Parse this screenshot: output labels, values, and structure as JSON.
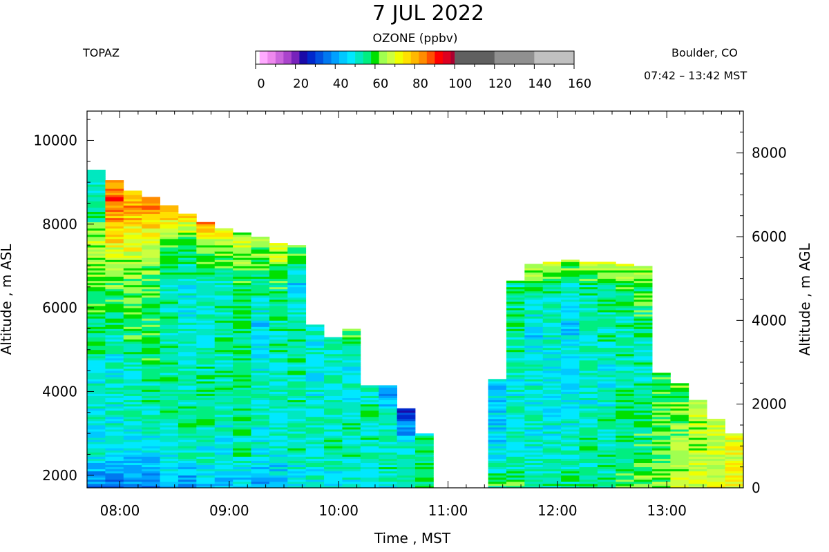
{
  "header": {
    "date": "7 JUL 2022",
    "site": "TOPAZ",
    "location": "Boulder, CO",
    "time_range": "07:42 – 13:42 MST"
  },
  "colorbar": {
    "title": "OZONE (ppbv)",
    "ticks": [
      "0",
      "20",
      "40",
      "60",
      "80",
      "100",
      "120",
      "140",
      "160"
    ],
    "bins": [
      {
        "from": 0,
        "to": 2,
        "color": "#ffffff"
      },
      {
        "from": 2,
        "to": 6,
        "color": "#ffaaff"
      },
      {
        "from": 6,
        "to": 10,
        "color": "#ee88ee"
      },
      {
        "from": 10,
        "to": 14,
        "color": "#cc66dd"
      },
      {
        "from": 14,
        "to": 18,
        "color": "#aa44cc"
      },
      {
        "from": 18,
        "to": 22,
        "color": "#7722bb"
      },
      {
        "from": 22,
        "to": 26,
        "color": "#1a0aa8"
      },
      {
        "from": 26,
        "to": 30,
        "color": "#0028cc"
      },
      {
        "from": 30,
        "to": 34,
        "color": "#0050e0"
      },
      {
        "from": 34,
        "to": 38,
        "color": "#0078f0"
      },
      {
        "from": 38,
        "to": 42,
        "color": "#00a0ff"
      },
      {
        "from": 42,
        "to": 46,
        "color": "#00c8ff"
      },
      {
        "from": 46,
        "to": 50,
        "color": "#00e8ff"
      },
      {
        "from": 50,
        "to": 54,
        "color": "#00e8c0"
      },
      {
        "from": 54,
        "to": 58,
        "color": "#00ee80"
      },
      {
        "from": 58,
        "to": 62,
        "color": "#00e000"
      },
      {
        "from": 62,
        "to": 66,
        "color": "#a0ff50"
      },
      {
        "from": 66,
        "to": 70,
        "color": "#ccff40"
      },
      {
        "from": 70,
        "to": 74,
        "color": "#f0ff00"
      },
      {
        "from": 74,
        "to": 78,
        "color": "#ffe000"
      },
      {
        "from": 78,
        "to": 82,
        "color": "#ffb800"
      },
      {
        "from": 82,
        "to": 86,
        "color": "#ff8c00"
      },
      {
        "from": 86,
        "to": 90,
        "color": "#ff5000"
      },
      {
        "from": 90,
        "to": 94,
        "color": "#ff0000"
      },
      {
        "from": 94,
        "to": 98,
        "color": "#dd0020"
      },
      {
        "from": 98,
        "to": 100,
        "color": "#aa0030"
      },
      {
        "from": 100,
        "to": 120,
        "color": "#606060"
      },
      {
        "from": 120,
        "to": 140,
        "color": "#909090"
      },
      {
        "from": 140,
        "to": 160,
        "color": "#c0c0c0"
      }
    ]
  },
  "chart_data": {
    "type": "heatmap",
    "title": "7 JUL 2022",
    "xlabel": "Time , MST",
    "ylabel": "Altitude , m ASL",
    "y2label": "Altitude , m AGL",
    "xticks": [
      "08:00",
      "09:00",
      "10:00",
      "11:00",
      "12:00",
      "13:00"
    ],
    "yticks": [
      2000,
      4000,
      6000,
      8000,
      10000
    ],
    "y2ticks": [
      0,
      2000,
      4000,
      6000,
      8000
    ],
    "xlim": [
      "07:42",
      "13:42"
    ],
    "ylim": [
      1700,
      10700
    ],
    "y2offset": 1700,
    "z_range": [
      0,
      160
    ],
    "altitude_levels": [
      1800,
      2500,
      3500,
      4500,
      5500,
      6500,
      7500,
      8500
    ],
    "profiles": [
      {
        "time": "07:47",
        "top": 9300,
        "ozone": [
          36,
          50,
          50,
          52,
          56,
          62,
          66,
          52
        ]
      },
      {
        "time": "07:57",
        "top": 9050,
        "ozone": [
          36,
          46,
          52,
          50,
          54,
          60,
          72,
          86
        ]
      },
      {
        "time": "08:07",
        "top": 8800,
        "ozone": [
          40,
          46,
          52,
          52,
          58,
          60,
          70,
          82
        ]
      },
      {
        "time": "08:17",
        "top": 8650,
        "ozone": [
          38,
          46,
          54,
          56,
          58,
          60,
          66,
          86
        ]
      },
      {
        "time": "08:27",
        "top": 8450,
        "ozone": [
          42,
          50,
          54,
          54,
          54,
          52,
          60,
          82
        ]
      },
      {
        "time": "08:37",
        "top": 8250,
        "ozone": [
          38,
          52,
          56,
          50,
          50,
          50,
          60,
          80
        ]
      },
      {
        "time": "08:47",
        "top": 8050,
        "ozone": [
          44,
          50,
          56,
          54,
          50,
          52,
          66,
          98
        ]
      },
      {
        "time": "08:57",
        "top": 7900,
        "ozone": [
          44,
          48,
          52,
          54,
          54,
          52,
          66,
          84
        ]
      },
      {
        "time": "09:07",
        "top": 7800,
        "ozone": [
          46,
          54,
          56,
          56,
          56,
          56,
          66
        ]
      },
      {
        "time": "09:17",
        "top": 7700,
        "ozone": [
          40,
          50,
          52,
          50,
          46,
          54,
          64
        ]
      },
      {
        "time": "09:27",
        "top": 7550,
        "ozone": [
          44,
          50,
          52,
          52,
          54,
          58,
          68
        ]
      },
      {
        "time": "09:37",
        "top": 7500,
        "ozone": [
          46,
          52,
          54,
          54,
          56,
          46,
          62
        ]
      },
      {
        "time": "09:47",
        "top": 5600,
        "ozone": [
          48,
          52,
          52,
          50,
          52
        ]
      },
      {
        "time": "09:57",
        "top": 5300,
        "ozone": [
          48,
          54,
          52,
          52,
          50
        ]
      },
      {
        "time": "10:07",
        "top": 5500,
        "ozone": [
          50,
          54,
          52,
          48,
          60
        ]
      },
      {
        "time": "10:17",
        "top": 4150,
        "ozone": [
          50,
          52,
          54,
          52
        ]
      },
      {
        "time": "10:27",
        "top": 4150,
        "ozone": [
          50,
          54,
          50,
          34
        ]
      },
      {
        "time": "10:37",
        "top": 3600,
        "ozone": [
          52,
          56,
          30
        ]
      },
      {
        "time": "10:47",
        "top": 3000,
        "ozone": [
          56,
          54
        ]
      },
      {
        "time": "11:27",
        "top": 4300,
        "ozone": [
          58,
          48,
          46
        ]
      },
      {
        "time": "11:37",
        "top": 6650,
        "ozone": [
          58,
          52,
          50,
          52,
          56,
          54,
          54
        ]
      },
      {
        "time": "11:47",
        "top": 7050,
        "ozone": [
          56,
          50,
          52,
          50,
          46,
          56,
          82
        ]
      },
      {
        "time": "11:57",
        "top": 7100,
        "ozone": [
          54,
          52,
          48,
          50,
          50,
          54,
          86
        ]
      },
      {
        "time": "12:07",
        "top": 7150,
        "ozone": [
          54,
          54,
          48,
          48,
          46,
          52,
          72
        ]
      },
      {
        "time": "12:17",
        "top": 7100,
        "ozone": [
          56,
          54,
          50,
          52,
          52,
          54,
          76
        ]
      },
      {
        "time": "12:27",
        "top": 7100,
        "ozone": [
          56,
          54,
          52,
          50,
          54,
          56,
          80
        ]
      },
      {
        "time": "12:37",
        "top": 7050,
        "ozone": [
          60,
          56,
          56,
          52,
          54,
          58,
          80
        ]
      },
      {
        "time": "12:47",
        "top": 7000,
        "ozone": [
          62,
          58,
          56,
          52,
          56,
          60,
          72
        ]
      },
      {
        "time": "12:57",
        "top": 4450,
        "ozone": [
          64,
          60,
          60,
          60
        ]
      },
      {
        "time": "13:07",
        "top": 4200,
        "ozone": [
          66,
          64,
          62
        ]
      },
      {
        "time": "13:17",
        "top": 3800,
        "ozone": [
          68,
          66,
          66
        ]
      },
      {
        "time": "13:27",
        "top": 3350,
        "ozone": [
          70,
          68
        ]
      },
      {
        "time": "13:37",
        "top": 3000,
        "ozone": [
          72,
          70
        ]
      }
    ]
  }
}
